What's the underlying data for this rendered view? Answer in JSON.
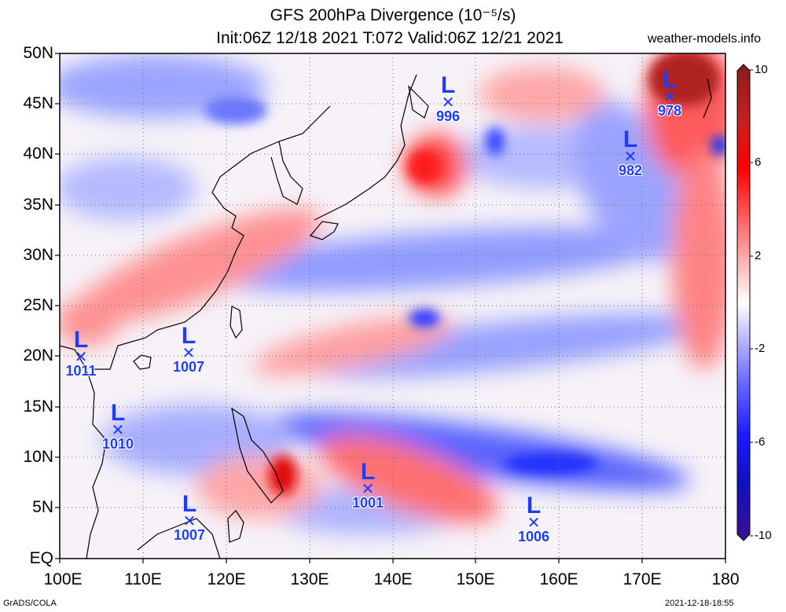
{
  "header": {
    "title_line1": "GFS 200hPa Divergence (10⁻⁵/s)",
    "title_line2": "Init:06Z 12/18 2021 T:072 Valid:06Z 12/21 2021",
    "site": "weather-models.info"
  },
  "footer": {
    "credit_left": "GrADS/COLA",
    "credit_right": "2021-12-18-18:55"
  },
  "map": {
    "lat_labels": [
      "50N",
      "45N",
      "40N",
      "35N",
      "30N",
      "25N",
      "20N",
      "15N",
      "10N",
      "5N",
      "EQ"
    ],
    "lon_labels": [
      "100E",
      "110E",
      "120E",
      "130E",
      "140E",
      "150E",
      "160E",
      "170E",
      "180"
    ]
  },
  "colorbar": {
    "labels": [
      "10",
      "6",
      "2",
      "-2",
      "-6",
      "-10"
    ],
    "colors_top_to_bottom": [
      "#8b1a1a",
      "#c82020",
      "#ff0000",
      "#ff6060",
      "#ffb0b0",
      "#ffffff",
      "#b0b0ff",
      "#6a6aff",
      "#1a1aff",
      "#1010c0",
      "#3a1090"
    ]
  },
  "pressure_lows": [
    {
      "letter": "L",
      "value": "996"
    },
    {
      "letter": "L",
      "value": "978"
    },
    {
      "letter": "L",
      "value": "982"
    },
    {
      "letter": "L",
      "value": "1011"
    },
    {
      "letter": "L",
      "value": "1007"
    },
    {
      "letter": "L",
      "value": "1010"
    },
    {
      "letter": "L",
      "value": "1001"
    },
    {
      "letter": "L",
      "value": "1007"
    },
    {
      "letter": "L",
      "value": "1006"
    }
  ],
  "colors": {
    "low_marker": "#1e3cff",
    "divergence": "#ff2a2a",
    "convergence": "#2a3cff"
  }
}
